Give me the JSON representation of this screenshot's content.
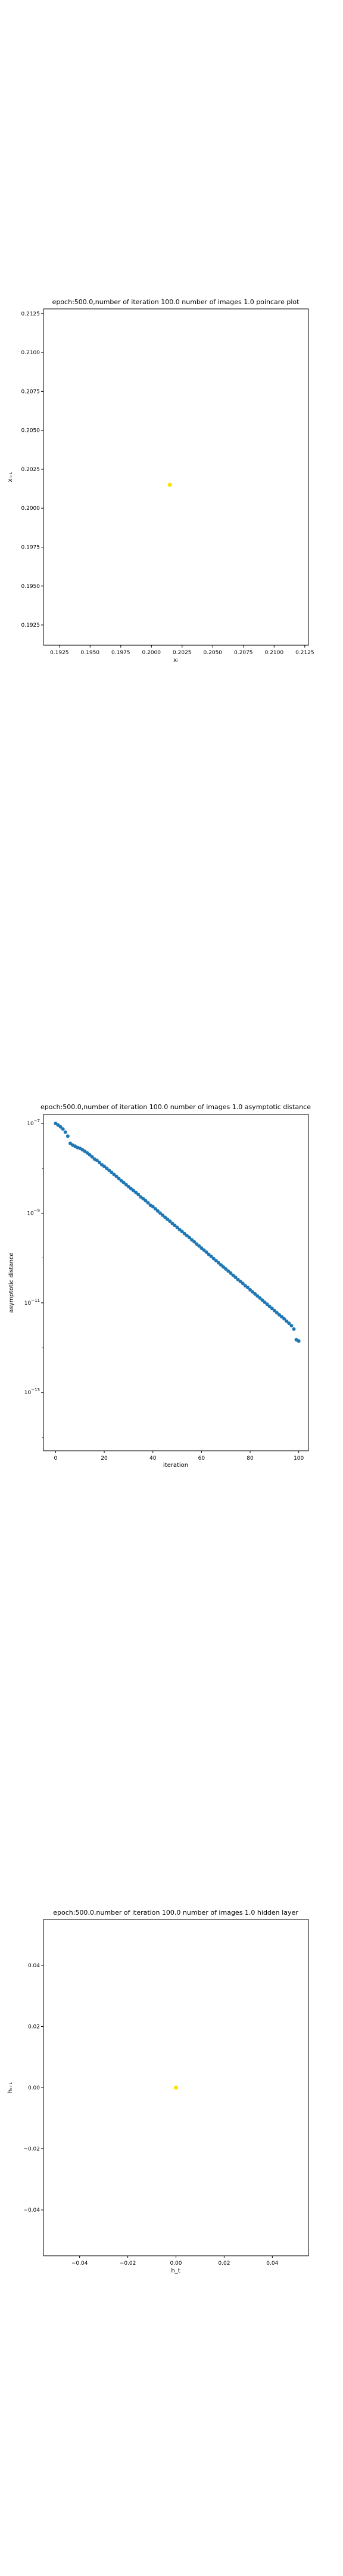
{
  "colors": {
    "scatter_yellow": "#ffe000",
    "series_blue": "#1f77b4",
    "axis": "#000000"
  },
  "chart_data": [
    {
      "type": "scatter",
      "title": "epoch:500.0,number of iteration 100.0 number of images 1.0 poincare plot",
      "xlabel": "xᵢ",
      "ylabel": "xᵢ₊₁",
      "xlim": [
        0.1912,
        0.2128
      ],
      "ylim": [
        0.1912,
        0.2128
      ],
      "xticks": [
        0.1925,
        0.195,
        0.1975,
        0.2,
        0.2025,
        0.205,
        0.2075,
        0.21,
        0.2125
      ],
      "xtick_labels": [
        "0.1925",
        "0.1950",
        "0.1975",
        "0.2000",
        "0.2025",
        "0.2050",
        "0.2075",
        "0.2100",
        "0.2125"
      ],
      "yticks": [
        0.1925,
        0.195,
        0.1975,
        0.2,
        0.2025,
        0.205,
        0.2075,
        0.21,
        0.2125
      ],
      "ytick_labels": [
        "0.1925",
        "0.1950",
        "0.1975",
        "0.2000",
        "0.2025",
        "0.2050",
        "0.2075",
        "0.2100",
        "0.2125"
      ],
      "series": [
        {
          "color": "#ffe000",
          "points": [
            [
              0.2015,
              0.2015
            ]
          ]
        }
      ],
      "grid": false
    },
    {
      "type": "scatter",
      "title": "epoch:500.0,number of iteration 100.0  number of images 1.0 asymptotic distance",
      "xlabel": "iteration",
      "ylabel": "asymptotic distance",
      "yscale": "log",
      "xlim": [
        -5,
        104
      ],
      "ylim_log10": [
        -14.3,
        -6.8
      ],
      "xticks": [
        0,
        20,
        40,
        60,
        80,
        100
      ],
      "xtick_labels": [
        "0",
        "20",
        "40",
        "60",
        "80",
        "100"
      ],
      "yticks_log10": [
        -13,
        -11,
        -9,
        -7
      ],
      "ytick_bases": [
        "10",
        "10",
        "10",
        "10"
      ],
      "ytick_exponents": [
        "−13",
        "−11",
        "−9",
        "−7"
      ],
      "series": [
        {
          "color": "#1f77b4",
          "points": [
            [
              0,
              1e-07
            ],
            [
              1,
              9.2e-08
            ],
            [
              2,
              8.4e-08
            ],
            [
              3,
              7.5e-08
            ],
            [
              4,
              6.4e-08
            ],
            [
              5,
              5.2e-08
            ],
            [
              6,
              3.6e-08
            ],
            [
              7,
              3.3e-08
            ],
            [
              8,
              3.1e-08
            ],
            [
              9,
              2.9e-08
            ],
            [
              10,
              2.8e-08
            ],
            [
              11,
              2.6e-08
            ],
            [
              12,
              2.4e-08
            ],
            [
              13,
              2.2e-08
            ],
            [
              14,
              2e-08
            ],
            [
              15,
              1.8e-08
            ],
            [
              16,
              1.6e-08
            ],
            [
              17,
              1.5e-08
            ],
            [
              18,
              1.35e-08
            ],
            [
              19,
              1.2e-08
            ],
            [
              20,
              1.1e-08
            ],
            [
              21,
              1e-08
            ],
            [
              22,
              9e-09
            ],
            [
              23,
              8.1e-09
            ],
            [
              24,
              7.3e-09
            ],
            [
              25,
              6.6e-09
            ],
            [
              26,
              5.9e-09
            ],
            [
              27,
              5.3e-09
            ],
            [
              28,
              4.8e-09
            ],
            [
              29,
              4.3e-09
            ],
            [
              30,
              3.9e-09
            ],
            [
              31,
              3.5e-09
            ],
            [
              32,
              3.2e-09
            ],
            [
              33,
              2.9e-09
            ],
            [
              34,
              2.6e-09
            ],
            [
              35,
              2.3e-09
            ],
            [
              36,
              2.1e-09
            ],
            [
              37,
              1.9e-09
            ],
            [
              38,
              1.7e-09
            ],
            [
              39,
              1.5e-09
            ],
            [
              40,
              1.4e-09
            ],
            [
              41,
              1.25e-09
            ],
            [
              42,
              1.12e-09
            ],
            [
              43,
              1e-09
            ],
            [
              44,
              9e-10
            ],
            [
              45,
              8.1e-10
            ],
            [
              46,
              7.3e-10
            ],
            [
              47,
              6.6e-10
            ],
            [
              48,
              5.9e-10
            ],
            [
              49,
              5.3e-10
            ],
            [
              50,
              4.8e-10
            ],
            [
              51,
              4.3e-10
            ],
            [
              52,
              3.9e-10
            ],
            [
              53,
              3.5e-10
            ],
            [
              54,
              3.15e-10
            ],
            [
              55,
              2.85e-10
            ],
            [
              56,
              2.55e-10
            ],
            [
              57,
              2.3e-10
            ],
            [
              58,
              2.05e-10
            ],
            [
              59,
              1.85e-10
            ],
            [
              60,
              1.66e-10
            ],
            [
              61,
              1.5e-10
            ],
            [
              62,
              1.35e-10
            ],
            [
              63,
              1.2e-10
            ],
            [
              64,
              1.08e-10
            ],
            [
              65,
              9.7e-11
            ],
            [
              66,
              8.7e-11
            ],
            [
              67,
              7.8e-11
            ],
            [
              68,
              7e-11
            ],
            [
              69,
              6.3e-11
            ],
            [
              70,
              5.7e-11
            ],
            [
              71,
              5.1e-11
            ],
            [
              72,
              4.6e-11
            ],
            [
              73,
              4.1e-11
            ],
            [
              74,
              3.7e-11
            ],
            [
              75,
              3.3e-11
            ],
            [
              76,
              3e-11
            ],
            [
              77,
              2.7e-11
            ],
            [
              78,
              2.4e-11
            ],
            [
              79,
              2.2e-11
            ],
            [
              80,
              1.95e-11
            ],
            [
              81,
              1.75e-11
            ],
            [
              82,
              1.58e-11
            ],
            [
              83,
              1.42e-11
            ],
            [
              84,
              1.28e-11
            ],
            [
              85,
              1.15e-11
            ],
            [
              86,
              1.03e-11
            ],
            [
              87,
              9.3e-12
            ],
            [
              88,
              8.3e-12
            ],
            [
              89,
              7.5e-12
            ],
            [
              90,
              6.7e-12
            ],
            [
              91,
              6e-12
            ],
            [
              92,
              5.4e-12
            ],
            [
              93,
              4.9e-12
            ],
            [
              94,
              4.4e-12
            ],
            [
              95,
              3.9e-12
            ],
            [
              96,
              3.5e-12
            ],
            [
              97,
              3.1e-12
            ],
            [
              98,
              2.6e-12
            ],
            [
              99,
              1.5e-12
            ],
            [
              100,
              1.4e-12
            ]
          ]
        }
      ],
      "grid": false
    },
    {
      "type": "scatter",
      "title": "epoch:500.0,number of iteration 100.0  number of images 1.0 hidden layer",
      "xlabel": "h_t",
      "ylabel": "hₜ₊₁",
      "xlim": [
        -0.055,
        0.055
      ],
      "ylim": [
        -0.055,
        0.055
      ],
      "xticks": [
        -0.04,
        -0.02,
        0.0,
        0.02,
        0.04
      ],
      "xtick_labels": [
        "−0.04",
        "−0.02",
        "0.00",
        "0.02",
        "0.04"
      ],
      "yticks": [
        -0.04,
        -0.02,
        0.0,
        0.02,
        0.04
      ],
      "ytick_labels": [
        "−0.04",
        "−0.02",
        "0.00",
        "0.02",
        "0.04"
      ],
      "series": [
        {
          "color": "#ffe000",
          "points": [
            [
              0.0,
              0.0
            ]
          ]
        }
      ],
      "grid": false
    }
  ]
}
